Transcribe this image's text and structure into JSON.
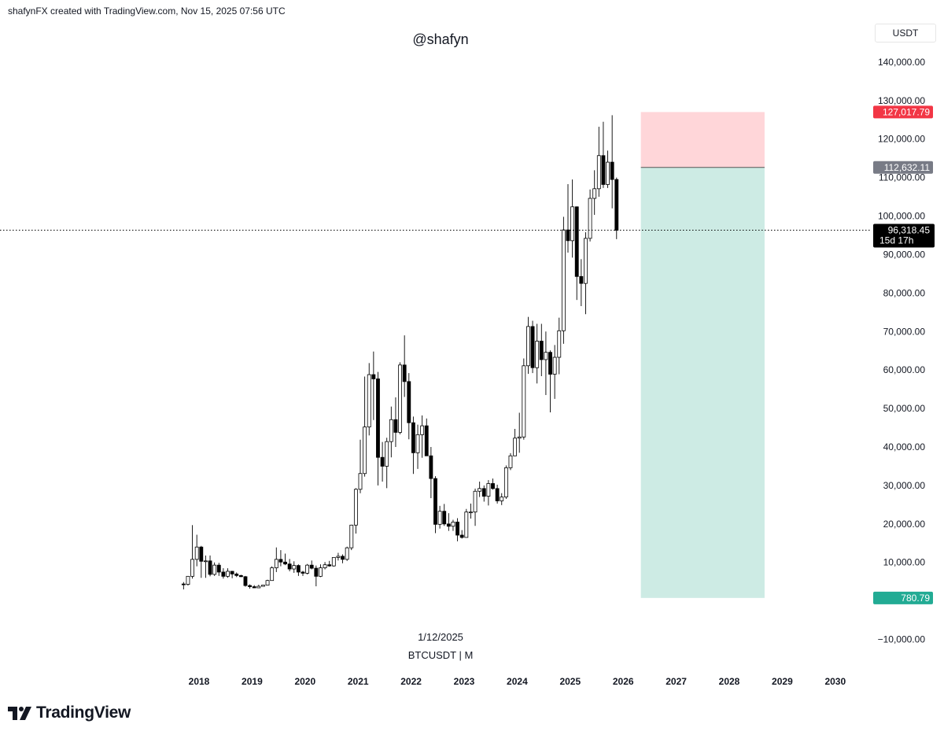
{
  "header": {
    "credit": "shafynFX created with TradingView.com, Nov 15, 2025 07:56 UTC",
    "handle": "@shafyn"
  },
  "axis": {
    "currency": "USDT"
  },
  "footer": {
    "date": "1/12/2025",
    "symbol": "BTCUSDT | M"
  },
  "brand": {
    "name": "TradingView",
    "icon": "tradingview-logo-icon"
  },
  "colors": {
    "up_body": "#ffffff",
    "down_body": "#000000",
    "candle_outline": "#000000",
    "stop_zone": "#ffd6d9",
    "target_zone": "#cdebe4",
    "stop_label": "#f23645",
    "entry_label": "#787b86",
    "target_label": "#22ab94",
    "price_label": "#000000"
  },
  "chart_data": {
    "type": "candlestick",
    "symbol": "BTCUSDT",
    "interval": "M",
    "ylim": [
      -15000,
      150000
    ],
    "yticks": [
      {
        "value": 140000,
        "label": "140,000.00"
      },
      {
        "value": 130000,
        "label": "130,000.00"
      },
      {
        "value": 120000,
        "label": "120,000.00"
      },
      {
        "value": 110000,
        "label": "110,000.00"
      },
      {
        "value": 100000,
        "label": "100,000.00"
      },
      {
        "value": 90000,
        "label": "90,000.00"
      },
      {
        "value": 80000,
        "label": "80,000.00"
      },
      {
        "value": 70000,
        "label": "70,000.00"
      },
      {
        "value": 60000,
        "label": "60,000.00"
      },
      {
        "value": 50000,
        "label": "50,000.00"
      },
      {
        "value": 40000,
        "label": "40,000.00"
      },
      {
        "value": 30000,
        "label": "30,000.00"
      },
      {
        "value": 20000,
        "label": "20,000.00"
      },
      {
        "value": 10000,
        "label": "10,000.00"
      },
      {
        "value": -10000,
        "label": "−10,000.00"
      }
    ],
    "xticks": [
      "2018",
      "2019",
      "2020",
      "2021",
      "2022",
      "2023",
      "2024",
      "2025",
      "2026",
      "2027",
      "2028",
      "2029",
      "2030"
    ],
    "first_candle": "2017-09",
    "candles": [
      [
        4400,
        4900,
        3000,
        4300
      ],
      [
        4300,
        6400,
        4000,
        6400
      ],
      [
        6400,
        19700,
        5800,
        10800
      ],
      [
        10800,
        17200,
        9000,
        14000
      ],
      [
        14000,
        14300,
        6000,
        10300
      ],
      [
        10300,
        11800,
        6000,
        10400
      ],
      [
        10400,
        11800,
        6400,
        6900
      ],
      [
        6900,
        10000,
        6500,
        9300
      ],
      [
        9300,
        9900,
        6500,
        7500
      ],
      [
        7500,
        8500,
        5800,
        6400
      ],
      [
        6400,
        8500,
        6000,
        7700
      ],
      [
        7700,
        7800,
        5900,
        7000
      ],
      [
        7000,
        7400,
        6200,
        6600
      ],
      [
        6600,
        6800,
        6200,
        6300
      ],
      [
        6300,
        6500,
        3700,
        4000
      ],
      [
        4000,
        4300,
        3200,
        3700
      ],
      [
        3700,
        4100,
        3400,
        3400
      ],
      [
        3400,
        4200,
        3400,
        3800
      ],
      [
        3800,
        4100,
        3700,
        4100
      ],
      [
        4100,
        5500,
        4100,
        5300
      ],
      [
        5300,
        9000,
        5300,
        8600
      ],
      [
        8600,
        13900,
        7500,
        10800
      ],
      [
        10800,
        13200,
        9000,
        10100
      ],
      [
        10100,
        12300,
        9300,
        9600
      ],
      [
        9600,
        10900,
        7700,
        8300
      ],
      [
        8300,
        10300,
        7300,
        9200
      ],
      [
        9200,
        9500,
        6500,
        7500
      ],
      [
        7500,
        7800,
        6500,
        7200
      ],
      [
        7200,
        9600,
        6900,
        9300
      ],
      [
        9300,
        10500,
        8200,
        8500
      ],
      [
        8500,
        9200,
        3800,
        6400
      ],
      [
        6400,
        9500,
        6200,
        8600
      ],
      [
        8600,
        10100,
        8200,
        9400
      ],
      [
        9400,
        10400,
        8900,
        9100
      ],
      [
        9100,
        9800,
        8900,
        11300
      ],
      [
        11300,
        12500,
        10500,
        11600
      ],
      [
        11600,
        12100,
        9800,
        10800
      ],
      [
        10800,
        14100,
        10400,
        13800
      ],
      [
        13800,
        19800,
        13200,
        19700
      ],
      [
        19700,
        29300,
        17500,
        29000
      ],
      [
        29000,
        41900,
        28000,
        33100
      ],
      [
        33100,
        58300,
        32300,
        45200
      ],
      [
        45200,
        61800,
        43000,
        58800
      ],
      [
        58800,
        64800,
        47000,
        57700
      ],
      [
        57700,
        59500,
        30000,
        37300
      ],
      [
        37300,
        41300,
        31000,
        35000
      ],
      [
        35000,
        42400,
        29300,
        41400
      ],
      [
        41400,
        50500,
        37300,
        47100
      ],
      [
        47100,
        52900,
        40000,
        43800
      ],
      [
        43800,
        62000,
        43300,
        61300
      ],
      [
        61300,
        69000,
        53000,
        57000
      ],
      [
        57000,
        59200,
        42000,
        46300
      ],
      [
        46300,
        47900,
        33000,
        38500
      ],
      [
        38500,
        45800,
        34300,
        43200
      ],
      [
        43200,
        48200,
        37200,
        45500
      ],
      [
        45500,
        47400,
        37700,
        37700
      ],
      [
        37700,
        40000,
        26700,
        31800
      ],
      [
        31800,
        32400,
        17600,
        19900
      ],
      [
        19900,
        24700,
        18800,
        23300
      ],
      [
        23300,
        25200,
        19500,
        20000
      ],
      [
        20000,
        22800,
        18200,
        19400
      ],
      [
        19400,
        21100,
        18200,
        20500
      ],
      [
        20500,
        21500,
        15500,
        17100
      ],
      [
        17100,
        18400,
        16200,
        16500
      ],
      [
        16500,
        23900,
        16500,
        23100
      ],
      [
        23100,
        25300,
        21400,
        23100
      ],
      [
        23100,
        29200,
        19500,
        28500
      ],
      [
        28500,
        31000,
        27000,
        29200
      ],
      [
        29200,
        30000,
        25800,
        27200
      ],
      [
        27200,
        31400,
        24800,
        30500
      ],
      [
        30500,
        31800,
        28900,
        29200
      ],
      [
        29200,
        30200,
        25300,
        26000
      ],
      [
        26000,
        28000,
        24900,
        27000
      ],
      [
        27000,
        35200,
        26500,
        34600
      ],
      [
        34600,
        38400,
        34000,
        37700
      ],
      [
        37700,
        44700,
        37600,
        42300
      ],
      [
        42300,
        48900,
        38500,
        42600
      ],
      [
        42600,
        63000,
        41900,
        61100
      ],
      [
        61100,
        73800,
        59000,
        71300
      ],
      [
        71300,
        72800,
        59200,
        60600
      ],
      [
        60600,
        72000,
        56500,
        67500
      ],
      [
        67500,
        72000,
        58400,
        62700
      ],
      [
        62700,
        70000,
        53500,
        64600
      ],
      [
        64600,
        65100,
        49000,
        58900
      ],
      [
        58900,
        66500,
        52500,
        63300
      ],
      [
        63300,
        73600,
        58900,
        70200
      ],
      [
        70200,
        99800,
        66800,
        96400
      ],
      [
        96400,
        108300,
        90500,
        93600
      ],
      [
        93600,
        109500,
        89200,
        102400
      ],
      [
        102400,
        102500,
        78200,
        84300
      ],
      [
        84300,
        88800,
        76600,
        82500
      ],
      [
        82500,
        95800,
        74500,
        94200
      ],
      [
        94200,
        106900,
        93400,
        104600
      ],
      [
        104600,
        111900,
        100300,
        107100
      ],
      [
        107100,
        123200,
        105000,
        115700
      ],
      [
        115700,
        124500,
        107300,
        108200
      ],
      [
        108200,
        117000,
        107300,
        114000
      ],
      [
        114000,
        126200,
        102000,
        109500
      ],
      [
        109500,
        110000,
        94000,
        96300
      ]
    ],
    "current_price": {
      "value": 96318.45,
      "label": "96,318.45",
      "countdown": "15d 17h"
    },
    "position": {
      "stop": {
        "value": 127017.79,
        "label": "127,017.79"
      },
      "entry": {
        "value": 112632.11,
        "label": "112,632.11"
      },
      "target": {
        "value": 780.79,
        "label": "780.79"
      },
      "start": "2026-05",
      "end": "2028-09"
    }
  }
}
